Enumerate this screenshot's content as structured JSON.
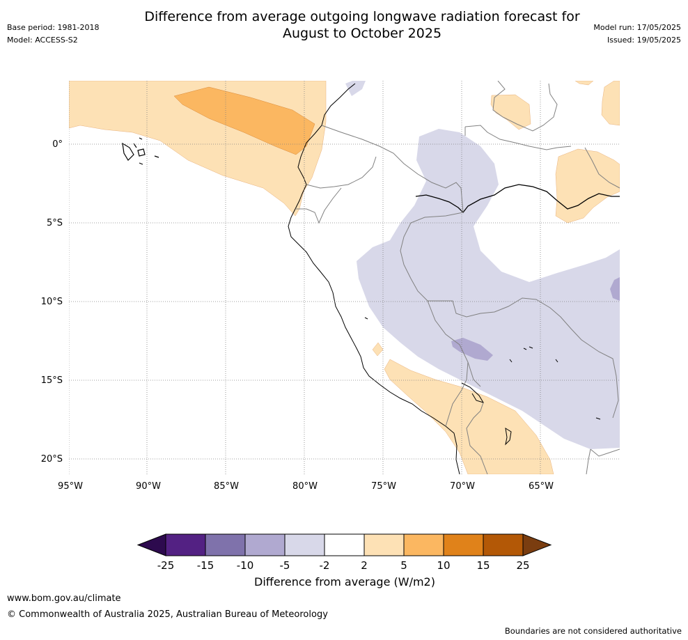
{
  "header": {
    "title_line1": "Difference from average outgoing longwave radiation forecast for",
    "title_line2": "August to October 2025",
    "base_period": "Base period: 1981-2018",
    "model": "Model: ACCESS-S2",
    "model_run": "Model run: 17/05/2025",
    "issued": "Issued: 19/05/2025"
  },
  "map": {
    "lat_labels": [
      "0°",
      "5°S",
      "10°S",
      "15°S",
      "20°S"
    ],
    "lon_labels": [
      "95°W",
      "90°W",
      "85°W",
      "80°W",
      "75°W",
      "70°W",
      "65°W"
    ],
    "gridlines": "dotted"
  },
  "colorbar": {
    "label": "Difference from average (W/m2)",
    "ticks": [
      "-25",
      "-15",
      "-10",
      "-5",
      "-2",
      "2",
      "5",
      "10",
      "15",
      "25"
    ],
    "under_color": "#2d0a4e",
    "over_color": "#7a3d10",
    "colors": [
      "#532183",
      "#7f72ab",
      "#b0a9d0",
      "#d8d8e9",
      "#ffffff",
      "#fde1b5",
      "#fbb761",
      "#e0821a",
      "#b35806"
    ]
  },
  "footer": {
    "url": "www.bom.gov.au/climate",
    "copyright": "© Commonwealth of Australia 2025, Australian Bureau of Meteorology",
    "disclaimer": "Boundaries are not considered authoritative"
  }
}
